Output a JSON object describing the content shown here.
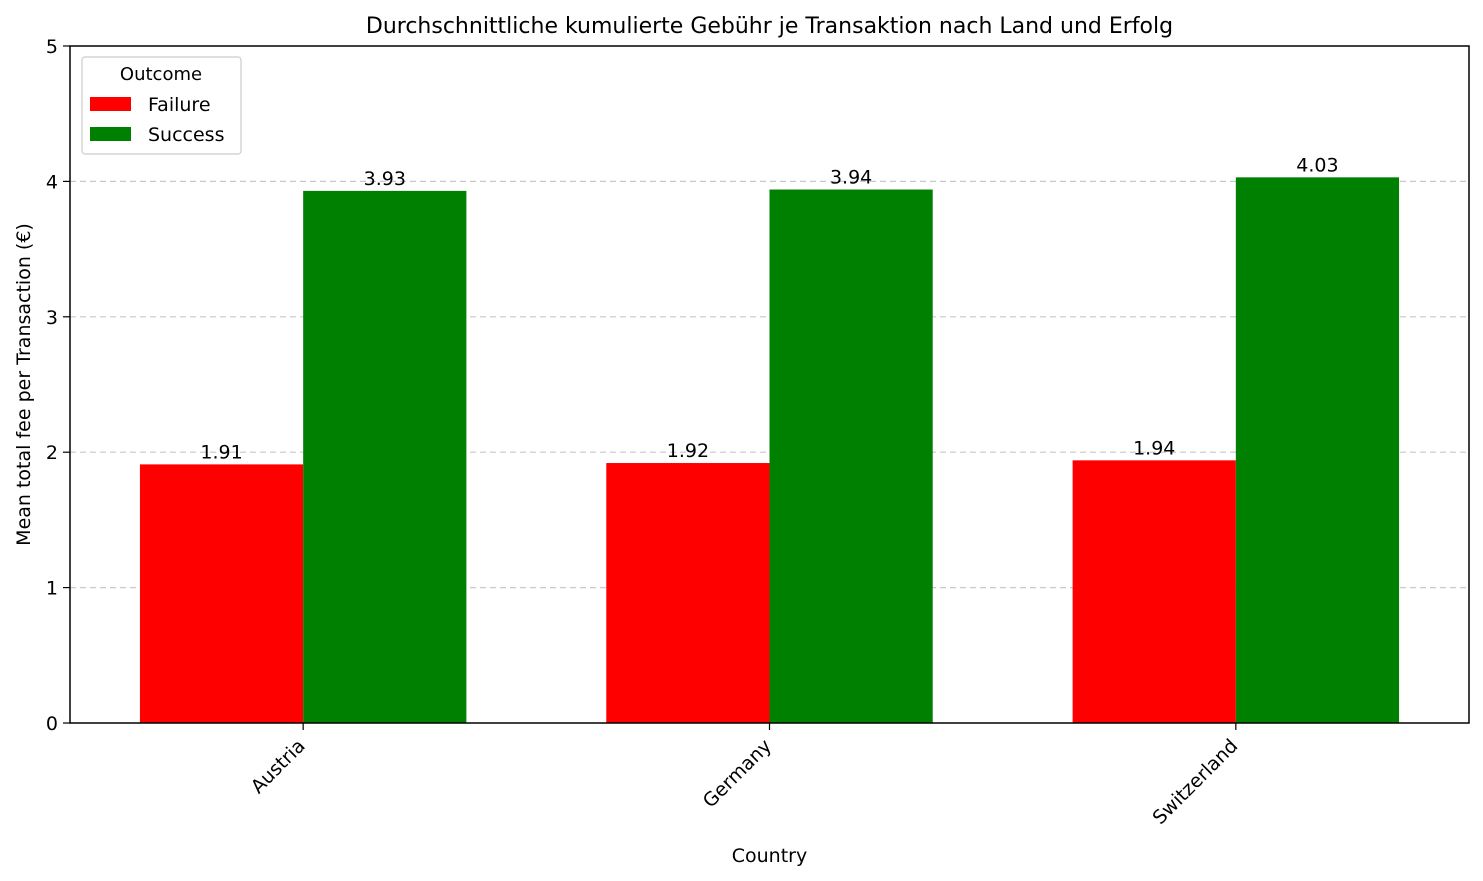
{
  "chart_data": {
    "type": "bar",
    "title": "Durchschnittliche kumulierte Gebühr je Transaktion nach Land und Erfolg",
    "xlabel": "Country",
    "ylabel": "Mean total fee per Transaction (€)",
    "categories": [
      "Austria",
      "Germany",
      "Switzerland"
    ],
    "series": [
      {
        "name": "Failure",
        "color": "#ff0000",
        "values": [
          1.91,
          1.92,
          1.94
        ],
        "labels": [
          "1.91",
          "1.92",
          "1.94"
        ]
      },
      {
        "name": "Success",
        "color": "#008000",
        "values": [
          3.93,
          3.94,
          4.03
        ],
        "labels": [
          "3.93",
          "3.94",
          "4.03"
        ]
      }
    ],
    "ylim": [
      0,
      5
    ],
    "yticks": [
      "0",
      "1",
      "2",
      "3",
      "4",
      "5"
    ],
    "grid": "y-dashed",
    "legend": {
      "title": "Outcome",
      "placement": "top-left"
    }
  }
}
